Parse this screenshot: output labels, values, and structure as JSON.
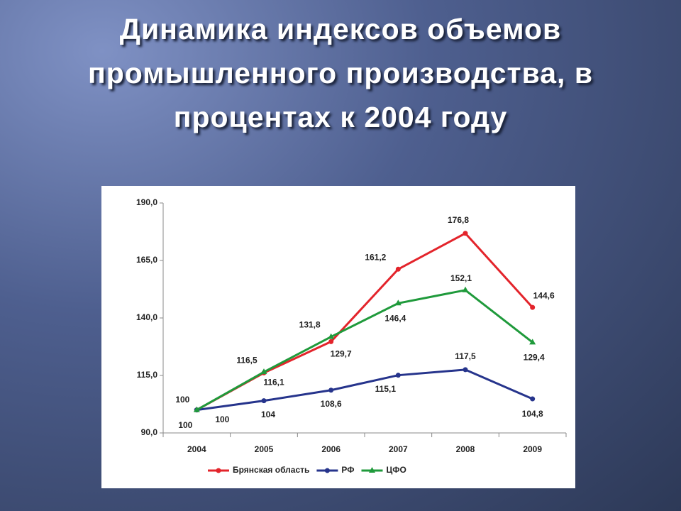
{
  "title": "Динамика индексов объемов промышленного производства, в процентах к 2004 году",
  "chart_data": {
    "type": "line",
    "categories": [
      "2004",
      "2005",
      "2006",
      "2007",
      "2008",
      "2009"
    ],
    "series": [
      {
        "name": "Брянская область",
        "color": "#e3242b",
        "marker": "circle",
        "values": [
          100,
          116.1,
          129.7,
          161.2,
          176.8,
          144.6
        ],
        "value_labels": [
          "100",
          "116,1",
          "129,7",
          "161,2",
          "176,8",
          "144,6"
        ]
      },
      {
        "name": "РФ",
        "color": "#26348c",
        "marker": "circle",
        "values": [
          100,
          104,
          108.6,
          115.1,
          117.5,
          104.8
        ],
        "value_labels": [
          "100",
          "104",
          "108,6",
          "115,1",
          "117,5",
          "104,8"
        ]
      },
      {
        "name": "ЦФО",
        "color": "#1f9a3b",
        "marker": "triangle",
        "values": [
          100,
          116.5,
          131.8,
          146.4,
          152.1,
          129.4
        ],
        "value_labels": [
          "100",
          "116,5",
          "131,8",
          "146,4",
          "152,1",
          "129,4"
        ]
      }
    ],
    "ylim": [
      90,
      190
    ],
    "yticks": [
      {
        "value": 90,
        "label": "90,0"
      },
      {
        "value": 115,
        "label": "115,0"
      },
      {
        "value": 140,
        "label": "140,0"
      },
      {
        "value": 165,
        "label": "165,0"
      },
      {
        "value": 190,
        "label": "190,0"
      }
    ],
    "grid": false,
    "legend": "bottom"
  }
}
